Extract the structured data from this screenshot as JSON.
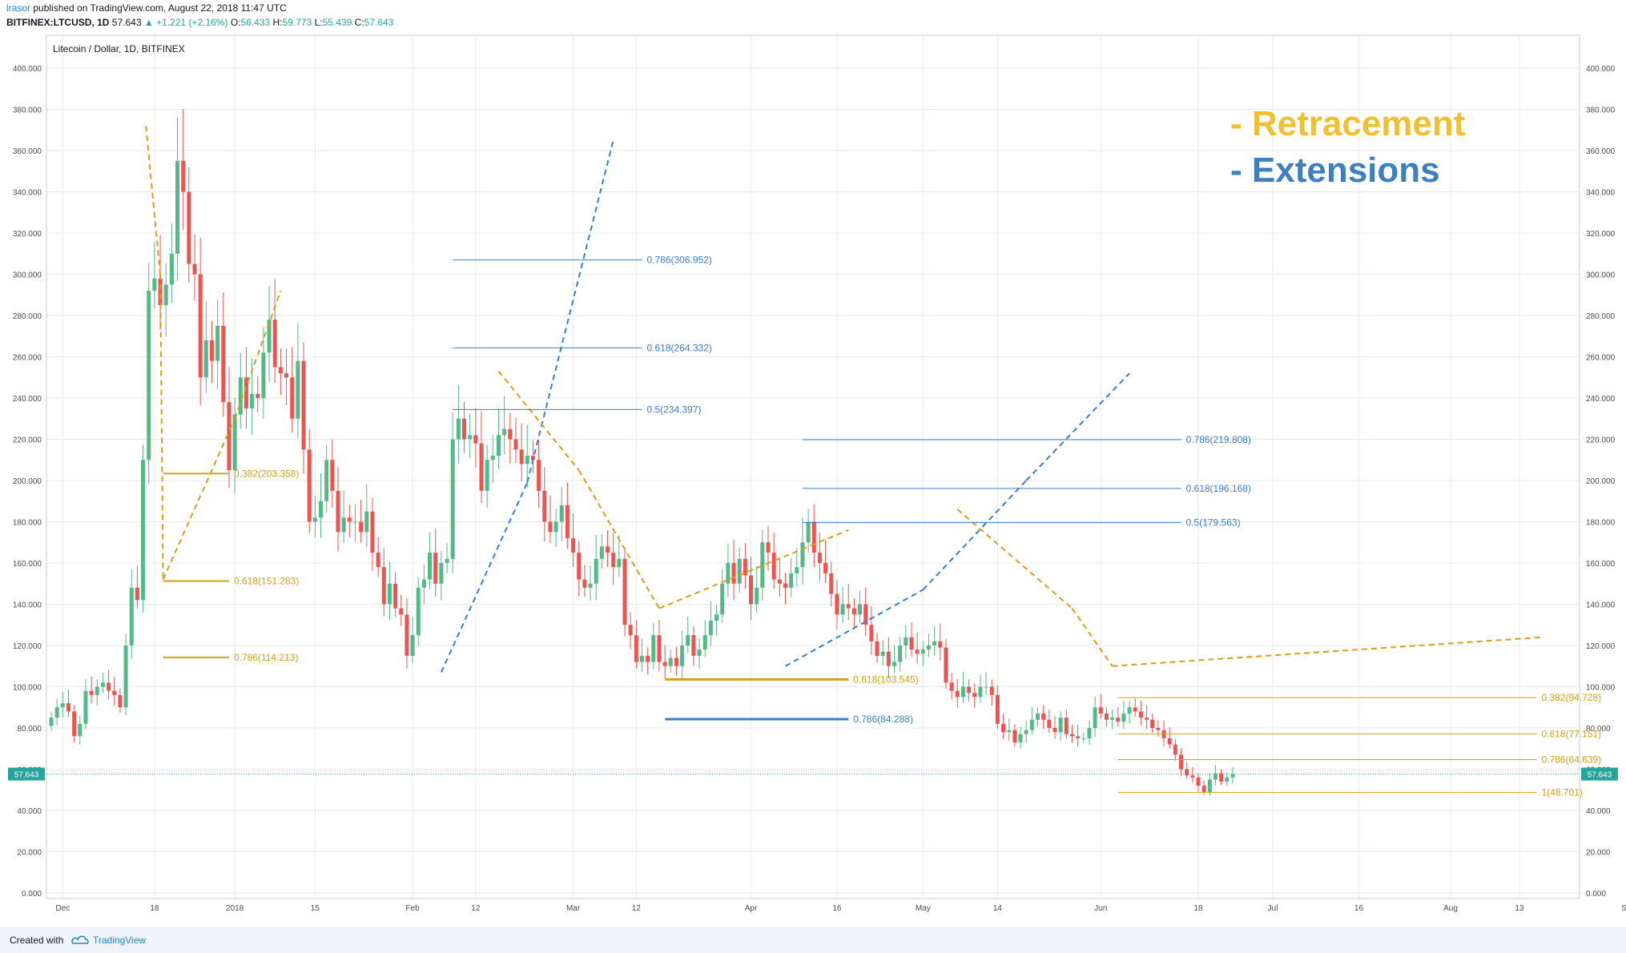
{
  "header": {
    "user": "lrasor",
    "published": " published on TradingView.com, August 22, 2018 11:47 UTC",
    "symbol": "BITFINEX:LTCUSD, 1D",
    "price": "57.643",
    "change": "+1.221 (+2.16%)",
    "o_label": "O:",
    "o_value": "56.433",
    "h_label": "H:",
    "h_value": "59.773",
    "l_label": "L:",
    "l_value": "55.439",
    "c_label": "C:",
    "c_value": "57.643"
  },
  "chart_title": "Litecoin / Dollar, 1D, BITFINEX",
  "legend": {
    "retracement": "- Retracement",
    "extensions": "- Extensions"
  },
  "colors": {
    "up": "#26a69a",
    "up_body": "#53b987",
    "down": "#ef5350",
    "retracement": "#d4a017",
    "retracement_legend": "#f0c030",
    "extensions": "#3a7dc9",
    "extensions_legend": "#3d7fc1",
    "grid": "#e6e9ef"
  },
  "footer": {
    "created": "Created with",
    "brand": "TradingView"
  },
  "chart_data": {
    "type": "candlestick",
    "title": "Litecoin / Dollar, 1D, BITFINEX",
    "ylim": [
      -5,
      410
    ],
    "y_ticks": [
      "0.000",
      "20.000",
      "40.000",
      "60.000",
      "80.000",
      "100.000",
      "120.000",
      "140.000",
      "160.000",
      "180.000",
      "200.000",
      "220.000",
      "240.000",
      "260.000",
      "280.000",
      "300.000",
      "320.000",
      "340.000",
      "360.000",
      "380.000",
      "400.000"
    ],
    "x_ticks": [
      {
        "label": "Dec",
        "day": 2
      },
      {
        "label": "18",
        "day": 18
      },
      {
        "label": "2018",
        "day": 32
      },
      {
        "label": "15",
        "day": 46
      },
      {
        "label": "Feb",
        "day": 63
      },
      {
        "label": "12",
        "day": 74
      },
      {
        "label": "Mar",
        "day": 91
      },
      {
        "label": "12",
        "day": 102
      },
      {
        "label": "Apr",
        "day": 122
      },
      {
        "label": "16",
        "day": 137
      },
      {
        "label": "May",
        "day": 152
      },
      {
        "label": "14",
        "day": 165
      },
      {
        "label": "Jun",
        "day": 183
      },
      {
        "label": "18",
        "day": 200
      },
      {
        "label": "Jul",
        "day": 213
      },
      {
        "label": "16",
        "day": 228
      },
      {
        "label": "Aug",
        "day": 244
      },
      {
        "label": "13",
        "day": 256
      },
      {
        "label": "Sep",
        "day": 275
      }
    ],
    "last_price": 57.643,
    "last_price_label": "57.643",
    "series": [
      {
        "name": "LTCUSD",
        "closes": [
          85,
          90,
          92,
          88,
          76,
          82,
          98,
          96,
          100,
          102,
          98,
          96,
          90,
          120,
          148,
          142,
          210,
          292,
          298,
          285,
          295,
          310,
          355,
          340,
          305,
          300,
          250,
          268,
          258,
          275,
          238,
          205,
          232,
          250,
          235,
          242,
          240,
          262,
          278,
          255,
          252,
          250,
          230,
          258,
          215,
          180,
          182,
          190,
          210,
          195,
          175,
          182,
          180,
          180,
          175,
          185,
          165,
          158,
          140,
          150,
          138,
          135,
          115,
          125,
          148,
          152,
          165,
          150,
          160,
          162,
          220,
          230,
          220,
          222,
          218,
          195,
          210,
          212,
          222,
          225,
          220,
          215,
          208,
          212,
          210,
          195,
          180,
          175,
          180,
          188,
          172,
          165,
          152,
          148,
          150,
          162,
          168,
          165,
          158,
          162,
          130,
          125,
          112,
          115,
          112,
          125,
          112,
          110,
          114,
          110,
          120,
          125,
          115,
          118,
          125,
          132,
          135,
          150,
          160,
          150,
          162,
          154,
          140,
          148,
          170,
          165,
          152,
          150,
          148,
          155,
          158,
          170,
          180,
          165,
          160,
          155,
          145,
          135,
          140,
          138,
          135,
          140,
          130,
          122,
          115,
          117,
          110,
          112,
          120,
          124,
          118,
          116,
          118,
          120,
          122,
          119,
          102,
          98,
          95,
          100,
          97,
          95,
          100,
          100,
          96,
          82,
          78,
          79,
          73,
          77,
          79,
          84,
          87,
          84,
          80,
          78,
          85,
          77,
          76,
          75,
          75,
          80,
          90,
          87,
          84,
          85,
          83,
          87,
          90,
          88,
          85,
          84,
          80,
          79,
          75,
          72,
          67,
          60,
          57,
          56,
          52,
          49,
          55,
          58,
          54,
          56,
          57.6
        ]
      }
    ],
    "retracement_levels": [
      {
        "label": "0.382(203.358)",
        "value": 203.358
      },
      {
        "label": "0.618(151.283)",
        "value": 151.283
      },
      {
        "label": "0.786(114.213)",
        "value": 114.213
      },
      {
        "label": "0.618(103.545)",
        "value": 103.545
      },
      {
        "label": "0.382(94.728)",
        "value": 94.728
      },
      {
        "label": "0.618(77.151)",
        "value": 77.151
      },
      {
        "label": "0.786(64.639)",
        "value": 64.639
      },
      {
        "label": "1(48.701)",
        "value": 48.701
      }
    ],
    "extension_levels": [
      {
        "label": "0.786(306.952)",
        "value": 306.952
      },
      {
        "label": "0.618(264.332)",
        "value": 264.332
      },
      {
        "label": "0.5(234.397)",
        "value": 234.397
      },
      {
        "label": "0.786(219.808)",
        "value": 219.808
      },
      {
        "label": "0.618(196.168)",
        "value": 196.168
      },
      {
        "label": "0.5(179.563)",
        "value": 179.563
      },
      {
        "label": "0.786(84.288)",
        "value": 84.288
      }
    ]
  }
}
